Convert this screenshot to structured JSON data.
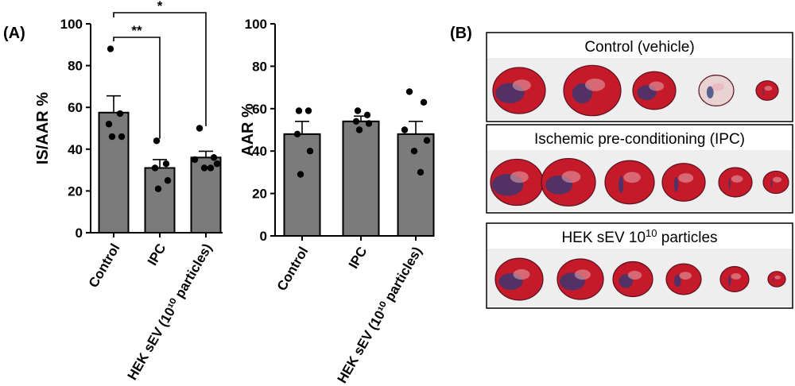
{
  "panel_a_label": "(A)",
  "panel_b_label": "(B)",
  "chart_data": [
    {
      "type": "bar",
      "title": "",
      "ylabel": "IS/AAR %",
      "xlabel": "",
      "ylim": [
        0,
        100
      ],
      "yticks": [
        "0",
        "20",
        "40",
        "60",
        "80",
        "100"
      ],
      "categories": [
        "Control",
        "IPC",
        "HEK sEV (10¹⁰ particles)"
      ],
      "values": [
        57.5,
        31,
        36
      ],
      "sem": [
        8,
        4,
        3
      ],
      "points": [
        [
          88,
          57,
          52,
          46,
          46
        ],
        [
          44,
          33,
          31,
          25,
          21
        ],
        [
          50,
          36,
          35,
          33,
          31,
          31
        ]
      ],
      "significance": [
        {
          "from": 0,
          "to": 1,
          "label": "**"
        },
        {
          "from": 0,
          "to": 2,
          "label": "*"
        }
      ]
    },
    {
      "type": "bar",
      "title": "",
      "ylabel": "AAR %",
      "xlabel": "",
      "ylim": [
        0,
        100
      ],
      "yticks": [
        "0",
        "20",
        "40",
        "60",
        "80",
        "100"
      ],
      "categories": [
        "Control",
        "IPC",
        "HEK sEV (10¹⁰ particles)"
      ],
      "values": [
        48,
        54,
        48
      ],
      "sem": [
        6,
        2.5,
        6
      ],
      "points": [
        [
          59,
          59,
          48,
          40,
          29
        ],
        [
          59,
          57,
          54,
          53,
          50
        ],
        [
          68,
          63,
          50,
          45,
          40,
          30
        ]
      ],
      "significance": []
    }
  ],
  "panel_b": {
    "boxes": [
      {
        "title": "Control (vehicle)",
        "slices": 5
      },
      {
        "title": "Ischemic pre-conditioning (IPC)",
        "slices": 6
      },
      {
        "title_main": "HEK sEV 10",
        "title_sup": "10",
        "title_end": " particles",
        "slices": 6
      }
    ]
  },
  "colors": {
    "bar_fill": "#7b7b7b",
    "infarct_pale": "#e8d2d2",
    "viable_red": "#c41a2a",
    "aar_blue": "#2e3a7a"
  }
}
